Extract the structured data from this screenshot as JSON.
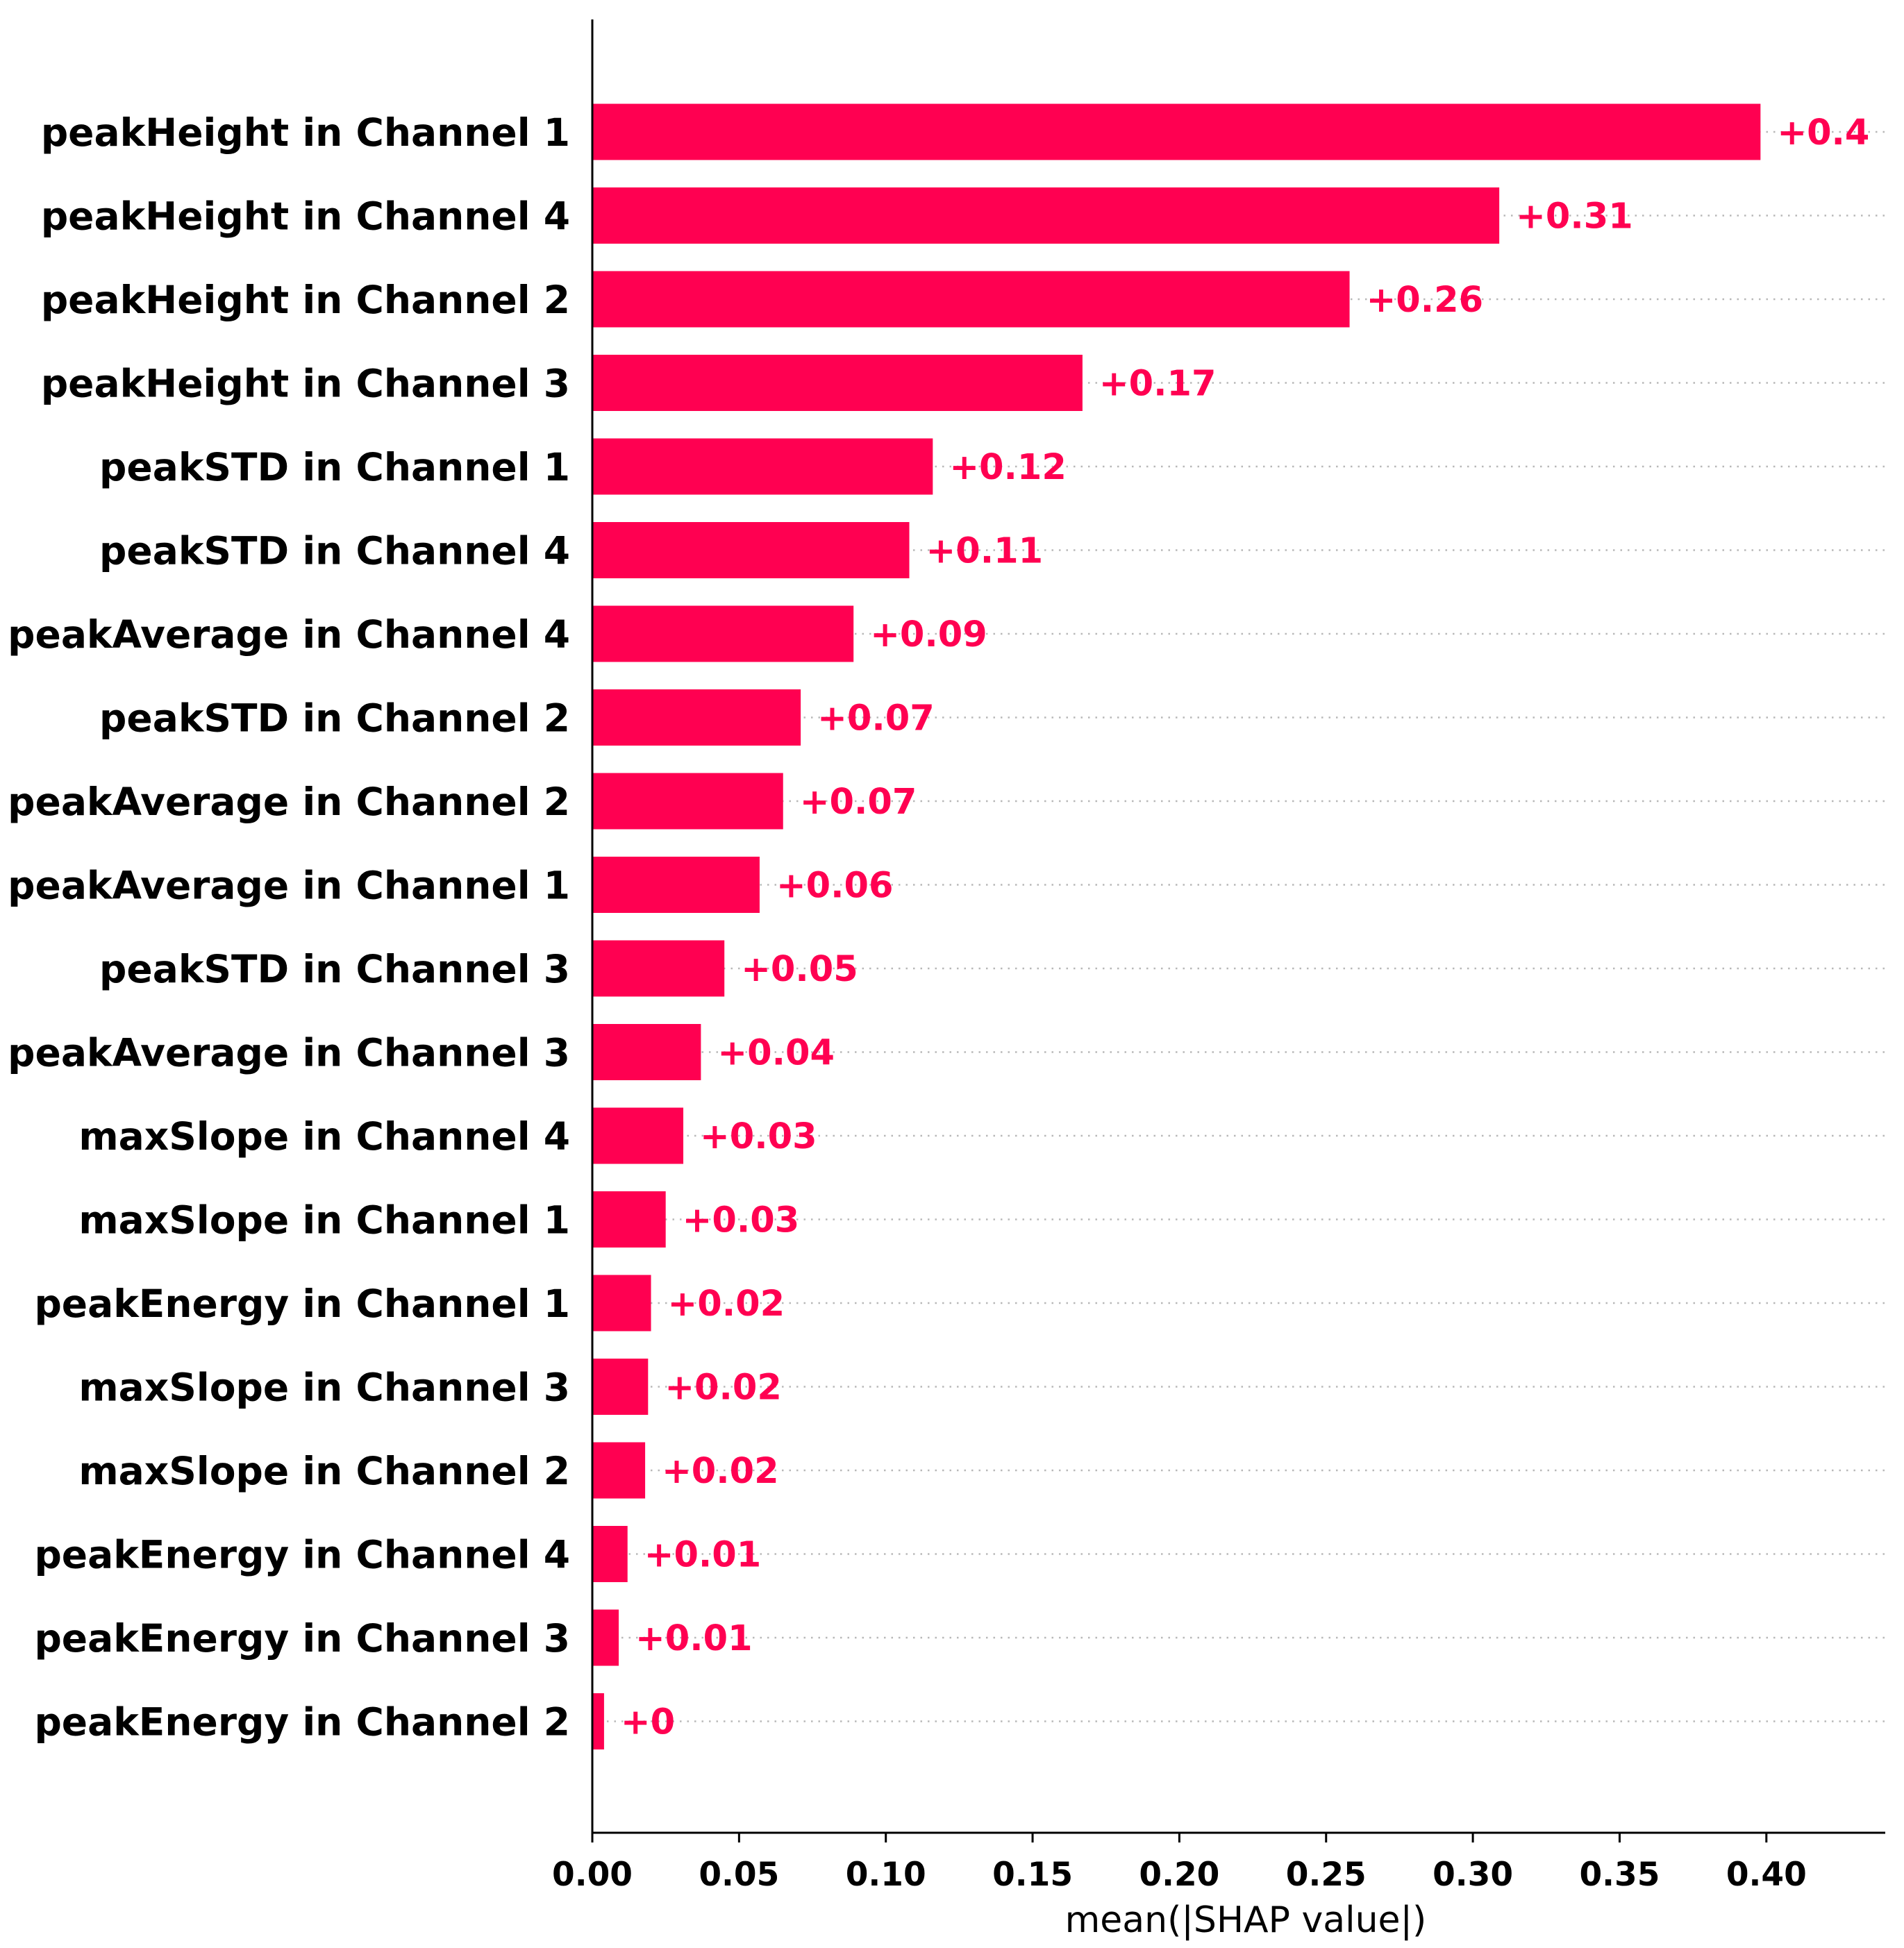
{
  "chart_data": {
    "type": "bar",
    "orientation": "horizontal",
    "title": "",
    "xlabel": "mean(|SHAP value|)",
    "ylabel": "",
    "xlim": [
      0,
      0.44
    ],
    "xticks": [
      "0.00",
      "0.05",
      "0.10",
      "0.15",
      "0.20",
      "0.25",
      "0.30",
      "0.35",
      "0.40"
    ],
    "grid": "dotted horizontal guide lines",
    "legend": "none",
    "bar_color": "#ff0051",
    "categories": [
      "peakHeight in Channel 1",
      "peakHeight in Channel 4",
      "peakHeight in Channel 2",
      "peakHeight in Channel 3",
      "peakSTD in Channel 1",
      "peakSTD in Channel 4",
      "peakAverage in Channel 4",
      "peakSTD in Channel 2",
      "peakAverage in Channel 2",
      "peakAverage in Channel 1",
      "peakSTD in Channel 3",
      "peakAverage in Channel 3",
      "maxSlope in Channel 4",
      "maxSlope in Channel 1",
      "peakEnergy in Channel 1",
      "maxSlope in Channel 3",
      "maxSlope in Channel 2",
      "peakEnergy in Channel 4",
      "peakEnergy in Channel 3",
      "peakEnergy in Channel 2"
    ],
    "values": [
      0.398,
      0.309,
      0.258,
      0.167,
      0.116,
      0.108,
      0.089,
      0.071,
      0.065,
      0.057,
      0.045,
      0.037,
      0.031,
      0.025,
      0.02,
      0.019,
      0.018,
      0.012,
      0.009,
      0.004
    ],
    "value_labels": [
      "+0.4",
      "+0.31",
      "+0.26",
      "+0.17",
      "+0.12",
      "+0.11",
      "+0.09",
      "+0.07",
      "+0.07",
      "+0.06",
      "+0.05",
      "+0.04",
      "+0.03",
      "+0.03",
      "+0.02",
      "+0.02",
      "+0.02",
      "+0.01",
      "+0.01",
      "+0"
    ]
  }
}
